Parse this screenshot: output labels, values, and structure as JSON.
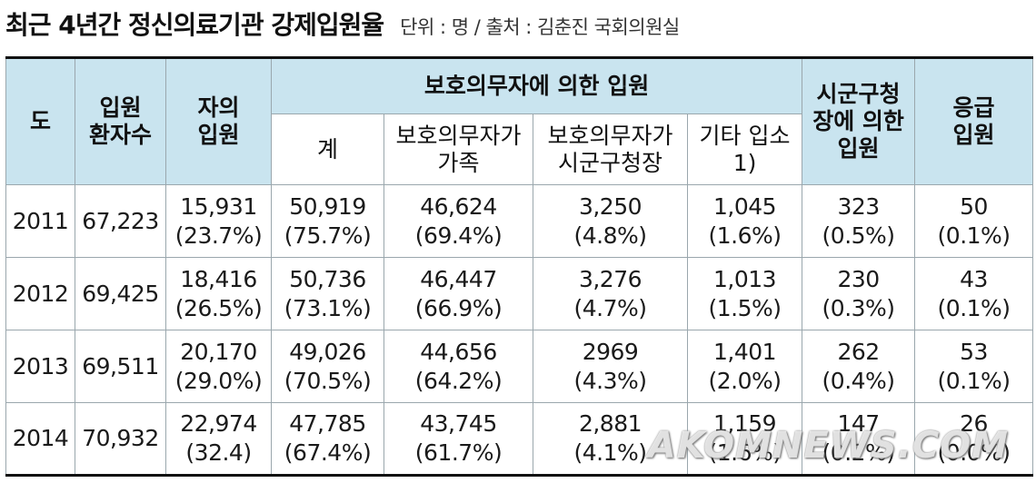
{
  "title": "최근 4년간 정신의료기관 강제입원율",
  "unit_source": "단위 : 명 / 출처 : 김춘진 국회의원실",
  "headers": {
    "year": "도",
    "patients": [
      "입원",
      "환자수"
    ],
    "voluntary": [
      "자의",
      "입원"
    ],
    "guardian_group": "보호의무자에 의한 입원",
    "guardian_total": "계",
    "guardian_family": [
      "보호의무자가",
      "가족"
    ],
    "guardian_official": [
      "보호의무자가",
      "시군구청장"
    ],
    "guardian_other": [
      "기타 입소",
      "1)"
    ],
    "mayor": [
      "시군구청",
      "장에 의한",
      "입원"
    ],
    "emergency": [
      "응급",
      "입원"
    ]
  },
  "rows": [
    {
      "year": "2011",
      "patients": "67,223",
      "voluntary": {
        "v": "15,931",
        "p": "(23.7%)"
      },
      "guardian_total": {
        "v": "50,919",
        "p": "(75.7%)"
      },
      "guardian_family": {
        "v": "46,624",
        "p": "(69.4%)"
      },
      "guardian_official": {
        "v": "3,250",
        "p": "(4.8%)"
      },
      "guardian_other": {
        "v": "1,045",
        "p": "(1.6%)"
      },
      "mayor": {
        "v": "323",
        "p": "(0.5%)"
      },
      "emergency": {
        "v": "50",
        "p": "(0.1%)"
      }
    },
    {
      "year": "2012",
      "patients": "69,425",
      "voluntary": {
        "v": "18,416",
        "p": "(26.5%)"
      },
      "guardian_total": {
        "v": "50,736",
        "p": "(73.1%)"
      },
      "guardian_family": {
        "v": "46,447",
        "p": "(66.9%)"
      },
      "guardian_official": {
        "v": "3,276",
        "p": "(4.7%)"
      },
      "guardian_other": {
        "v": "1,013",
        "p": "(1.5%)"
      },
      "mayor": {
        "v": "230",
        "p": "(0.3%)"
      },
      "emergency": {
        "v": "43",
        "p": "(0.1%)"
      }
    },
    {
      "year": "2013",
      "patients": "69,511",
      "voluntary": {
        "v": "20,170",
        "p": "(29.0%)"
      },
      "guardian_total": {
        "v": "49,026",
        "p": "(70.5%)"
      },
      "guardian_family": {
        "v": "44,656",
        "p": "(64.2%)"
      },
      "guardian_official": {
        "v": "2969",
        "p": "(4.3%)"
      },
      "guardian_other": {
        "v": "1,401",
        "p": "(2.0%)"
      },
      "mayor": {
        "v": "262",
        "p": "(0.4%)"
      },
      "emergency": {
        "v": "53",
        "p": "(0.1%)"
      }
    },
    {
      "year": "2014",
      "patients": "70,932",
      "voluntary": {
        "v": "22,974",
        "p": "(32.4)"
      },
      "guardian_total": {
        "v": "47,785",
        "p": "(67.4%)"
      },
      "guardian_family": {
        "v": "43,745",
        "p": "(61.7%)"
      },
      "guardian_official": {
        "v": "2,881",
        "p": "(4.1%)"
      },
      "guardian_other": {
        "v": "1,159",
        "p": "(1.6%)"
      },
      "mayor": {
        "v": "147",
        "p": "(0.2%)"
      },
      "emergency": {
        "v": "26",
        "p": "(0.0%)"
      }
    }
  ],
  "watermark": "AKOMNEWS.COM",
  "colors": {
    "header_bg": "#c9e4ef",
    "sub_header_bg": "#ffffff",
    "rule": "#111111"
  }
}
